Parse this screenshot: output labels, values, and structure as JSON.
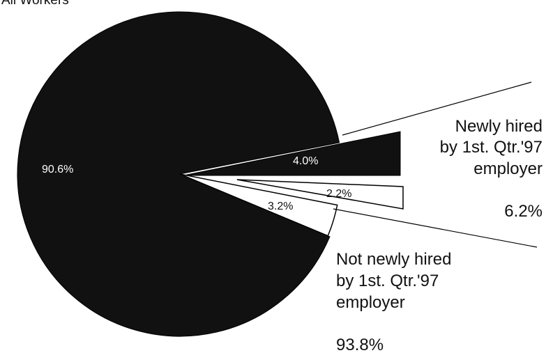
{
  "chart_data": {
    "type": "pie",
    "title": "All Workers",
    "slices": [
      {
        "label": "90.6%",
        "value": 90.6,
        "color": "#111111",
        "group": "not-newly-hired"
      },
      {
        "label": "4.0%",
        "value": 4.0,
        "color": "#111111",
        "group": "newly-hired"
      },
      {
        "label": "2.2%",
        "value": 2.2,
        "color": "#ffffff",
        "group": "newly-hired"
      },
      {
        "label": "3.2%",
        "value": 3.2,
        "color": "#ffffff",
        "group": "not-newly-hired"
      }
    ],
    "groups": [
      {
        "id": "newly-hired",
        "lines": [
          "Newly hired",
          "by 1st. Qtr.'97",
          "employer"
        ],
        "total_label": "6.2%",
        "total": 6.2
      },
      {
        "id": "not-newly-hired",
        "lines": [
          "Not newly hired",
          "by 1st. Qtr.'97",
          "employer"
        ],
        "total_label": "93.8%",
        "total": 93.8
      }
    ]
  }
}
